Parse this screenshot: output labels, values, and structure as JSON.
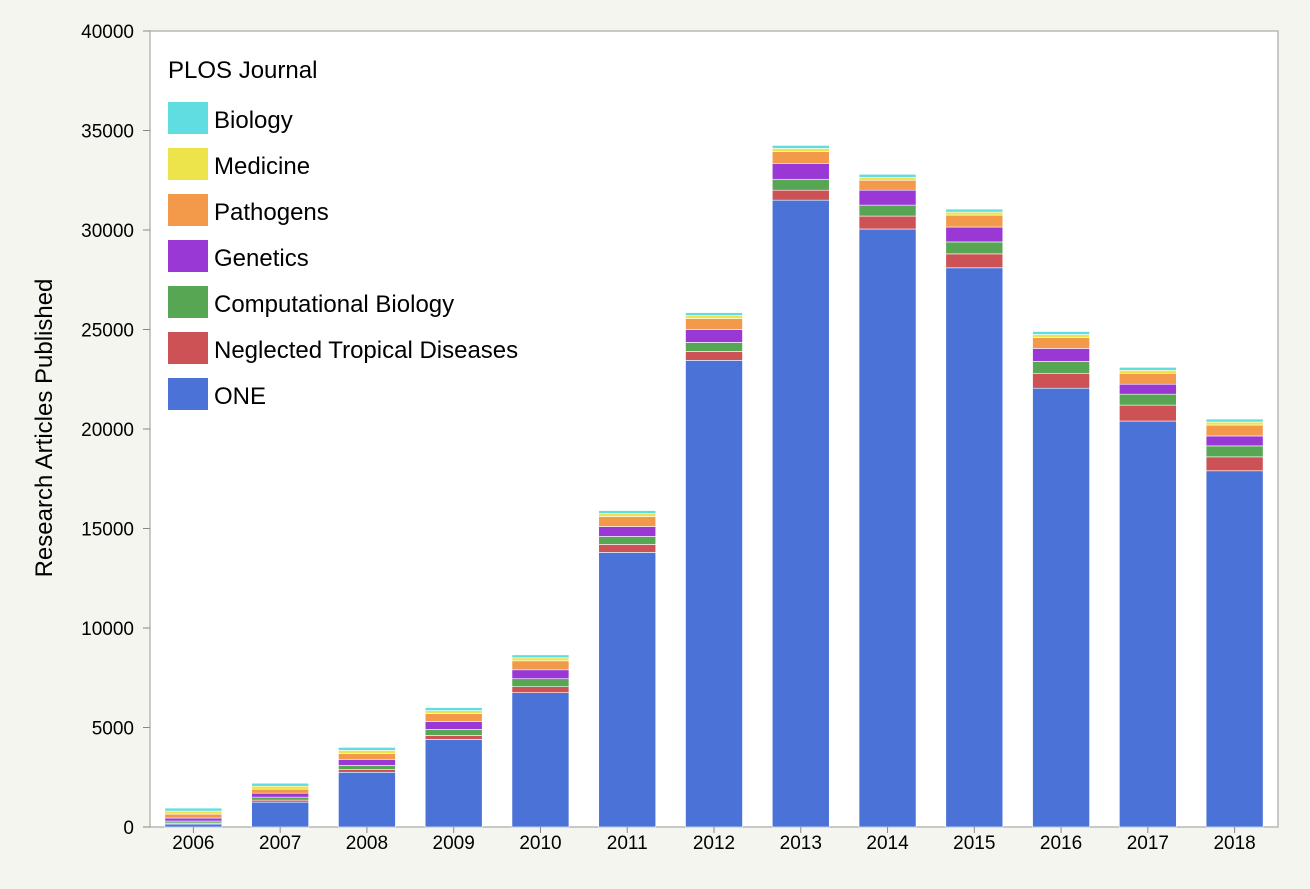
{
  "chart_data": {
    "type": "bar",
    "stacked": true,
    "categories": [
      "2006",
      "2007",
      "2008",
      "2009",
      "2010",
      "2011",
      "2012",
      "2013",
      "2014",
      "2015",
      "2016",
      "2017",
      "2018"
    ],
    "ylabel": "Research Articles Published",
    "xlabel": "",
    "ylim": [
      0,
      40000
    ],
    "yticks": [
      0,
      5000,
      10000,
      15000,
      20000,
      25000,
      30000,
      35000,
      40000
    ],
    "grid": false,
    "legend": {
      "title": "PLOS Journal",
      "placement": "top-left"
    },
    "series": [
      {
        "name": "ONE",
        "color": "#4a72d7",
        "values": [
          150,
          1250,
          2750,
          4400,
          6750,
          13800,
          23450,
          31500,
          30050,
          28100,
          22050,
          20400,
          17900
        ]
      },
      {
        "name": "Neglected Tropical Diseases",
        "color": "#cc5256",
        "values": [
          50,
          100,
          150,
          200,
          300,
          400,
          450,
          500,
          650,
          700,
          750,
          800,
          700
        ]
      },
      {
        "name": "Computational Biology",
        "color": "#56a653",
        "values": [
          100,
          150,
          200,
          300,
          400,
          400,
          450,
          550,
          550,
          600,
          600,
          550,
          550
        ]
      },
      {
        "name": "Genetics",
        "color": "#9a38d6",
        "values": [
          150,
          200,
          300,
          400,
          450,
          500,
          650,
          800,
          750,
          750,
          650,
          500,
          500
        ]
      },
      {
        "name": "Pathogens",
        "color": "#f2994a",
        "values": [
          200,
          200,
          300,
          400,
          450,
          500,
          550,
          600,
          500,
          600,
          550,
          550,
          550
        ]
      },
      {
        "name": "Medicine",
        "color": "#ede34a",
        "values": [
          150,
          150,
          150,
          150,
          150,
          150,
          150,
          150,
          150,
          150,
          150,
          150,
          150
        ]
      },
      {
        "name": "Biology",
        "color": "#5fdde0",
        "values": [
          150,
          150,
          150,
          150,
          150,
          150,
          150,
          150,
          150,
          150,
          150,
          150,
          150
        ]
      }
    ]
  }
}
